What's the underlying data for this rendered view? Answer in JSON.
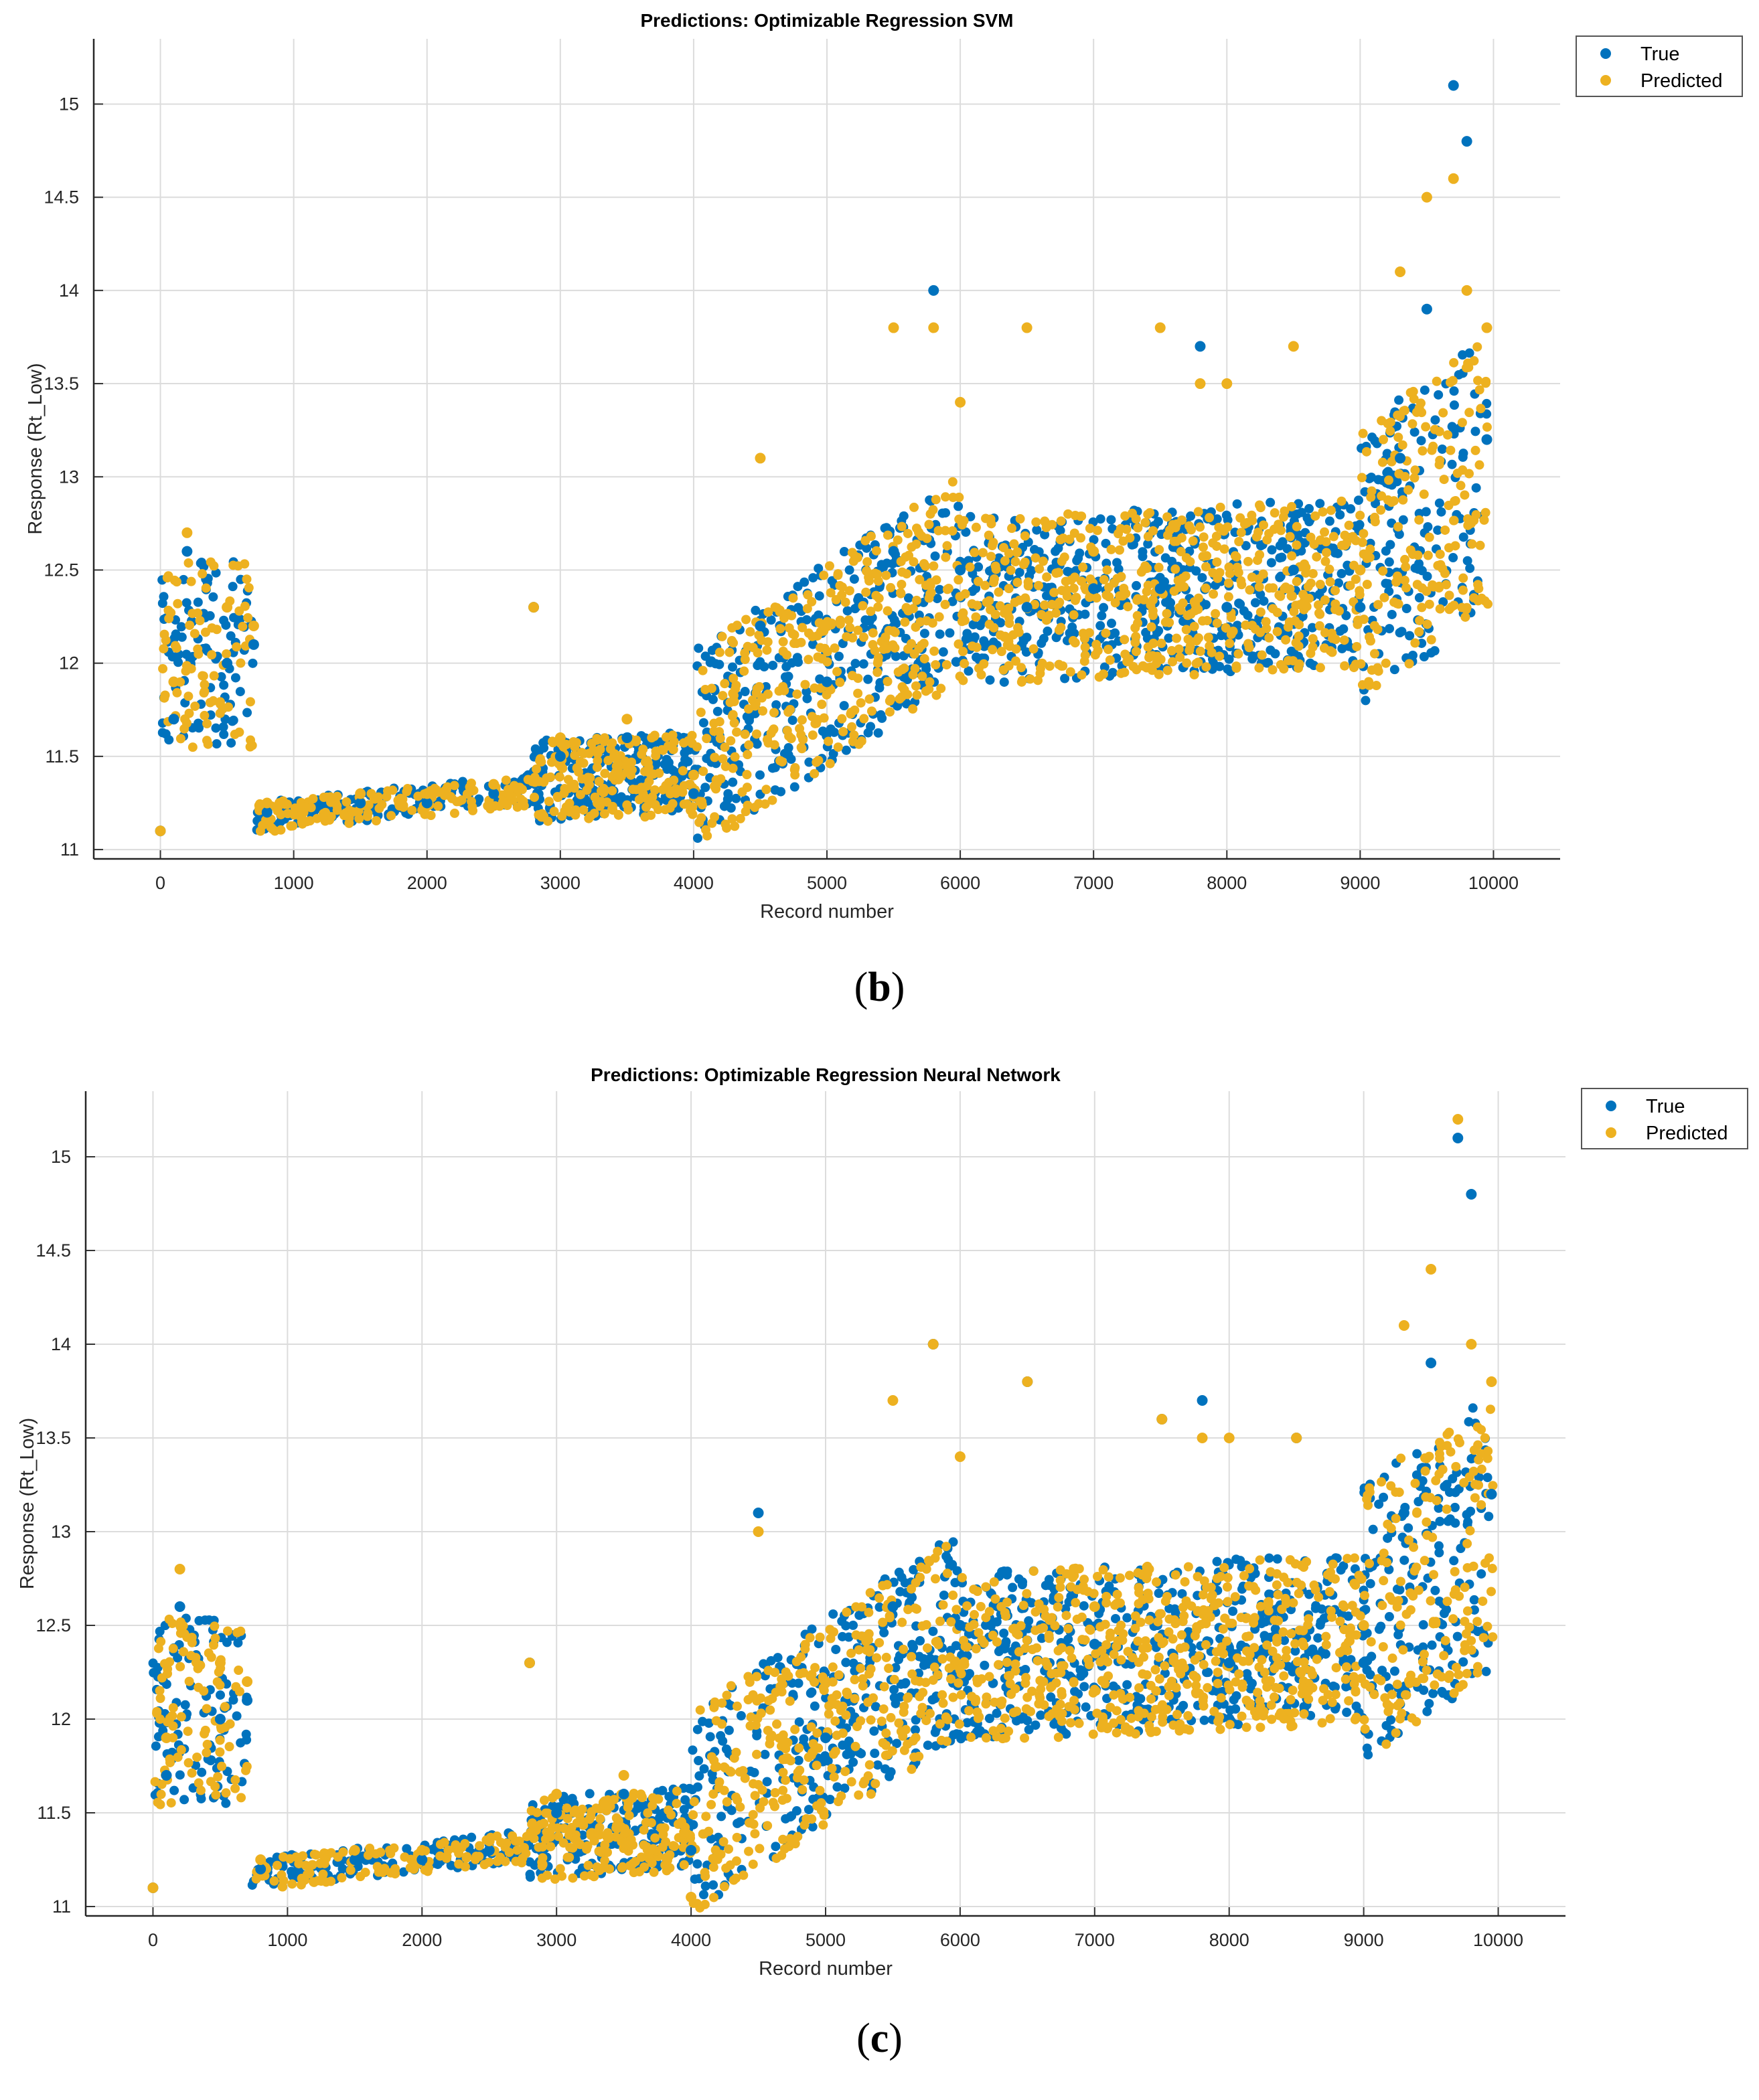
{
  "chart_data": [
    {
      "type": "scatter",
      "title": "Predictions: Optimizable Regression SVM",
      "xlabel": "Record number",
      "ylabel": "Response (Rt_Low)",
      "xlim": [
        -500,
        10500
      ],
      "ylim": [
        10.95,
        15.35
      ],
      "xticks": [
        0,
        1000,
        2000,
        3000,
        4000,
        5000,
        6000,
        7000,
        8000,
        9000,
        10000
      ],
      "yticks": [
        11,
        11.5,
        12,
        12.5,
        13,
        13.5,
        14,
        14.5,
        15
      ],
      "xtick_labels": [
        "0",
        "1000",
        "2000",
        "3000",
        "4000",
        "5000",
        "6000",
        "7000",
        "8000",
        "9000",
        "10000"
      ],
      "ytick_labels": [
        "11",
        "11.5",
        "12",
        "12.5",
        "13",
        "13.5",
        "14",
        "14.5",
        "15"
      ],
      "grid": true,
      "legend_position": "top-right",
      "series": [
        {
          "name": "True",
          "color": "#0072BD",
          "x": [
            0,
            100,
            200,
            500,
            700,
            800,
            1500,
            2000,
            2500,
            2800,
            3000,
            3500,
            4000,
            4500,
            5000,
            5500,
            5800,
            6000,
            6500,
            7000,
            7500,
            7800,
            8000,
            8500,
            9000,
            9300,
            9500,
            9700,
            9800,
            9950
          ],
          "y": [
            11.1,
            11.7,
            12.6,
            12.0,
            12.1,
            11.2,
            11.25,
            11.25,
            11.3,
            12.3,
            11.5,
            11.6,
            11.3,
            12.2,
            11.9,
            12.6,
            14.0,
            12.5,
            12.3,
            12.4,
            12.4,
            13.7,
            12.3,
            12.5,
            12.3,
            13.1,
            13.9,
            15.1,
            14.8,
            13.2
          ]
        },
        {
          "name": "Predicted",
          "color": "#EDB120",
          "x": [
            0,
            100,
            200,
            500,
            700,
            800,
            1500,
            2000,
            2500,
            2800,
            3000,
            3500,
            4000,
            4500,
            5000,
            5500,
            5800,
            6000,
            6500,
            7000,
            7500,
            7800,
            8000,
            8500,
            9000,
            9300,
            9500,
            9700,
            9800,
            9950
          ],
          "y": [
            11.1,
            11.9,
            12.7,
            12.3,
            12.2,
            11.25,
            11.3,
            11.3,
            11.35,
            12.3,
            11.6,
            11.7,
            11.4,
            13.1,
            12.2,
            13.8,
            13.8,
            13.4,
            13.8,
            12.6,
            13.8,
            13.5,
            13.5,
            13.7,
            12.5,
            14.1,
            14.5,
            14.6,
            14.0,
            13.8
          ]
        }
      ]
    },
    {
      "type": "scatter",
      "title": "Predictions: Optimizable Regression Neural Network",
      "xlabel": "Record number",
      "ylabel": "Response (Rt_Low)",
      "xlim": [
        -500,
        10500
      ],
      "ylim": [
        10.95,
        15.35
      ],
      "xticks": [
        0,
        1000,
        2000,
        3000,
        4000,
        5000,
        6000,
        7000,
        8000,
        9000,
        10000
      ],
      "yticks": [
        11,
        11.5,
        12,
        12.5,
        13,
        13.5,
        14,
        14.5,
        15
      ],
      "xtick_labels": [
        "0",
        "1000",
        "2000",
        "3000",
        "4000",
        "5000",
        "6000",
        "7000",
        "8000",
        "9000",
        "10000"
      ],
      "ytick_labels": [
        "11",
        "11.5",
        "12",
        "12.5",
        "13",
        "13.5",
        "14",
        "14.5",
        "15"
      ],
      "grid": true,
      "legend_position": "top-right",
      "series": [
        {
          "name": "True",
          "color": "#0072BD",
          "x": [
            0,
            100,
            200,
            500,
            700,
            800,
            1500,
            2000,
            2500,
            2800,
            3000,
            3500,
            4000,
            4500,
            5000,
            5500,
            5800,
            6000,
            6500,
            7000,
            7500,
            7800,
            8000,
            8500,
            9000,
            9300,
            9500,
            9700,
            9800,
            9950
          ],
          "y": [
            11.1,
            11.7,
            12.6,
            12.0,
            12.1,
            11.2,
            11.25,
            11.25,
            11.3,
            12.3,
            11.5,
            11.6,
            11.3,
            13.1,
            11.9,
            12.6,
            14.0,
            12.5,
            13.8,
            12.4,
            13.6,
            13.7,
            12.3,
            13.5,
            12.3,
            13.1,
            13.9,
            15.1,
            14.8,
            13.2
          ]
        },
        {
          "name": "Predicted",
          "color": "#EDB120",
          "x": [
            0,
            100,
            200,
            500,
            700,
            800,
            1500,
            2000,
            2500,
            2800,
            3000,
            3500,
            4000,
            4500,
            5000,
            5500,
            5800,
            6000,
            6500,
            7000,
            7500,
            7800,
            8000,
            8500,
            9000,
            9300,
            9500,
            9700,
            9800,
            9950
          ],
          "y": [
            11.1,
            11.9,
            12.8,
            12.3,
            12.2,
            11.25,
            11.3,
            11.3,
            11.35,
            12.3,
            11.6,
            11.7,
            11.05,
            13.0,
            12.2,
            13.7,
            14.0,
            13.4,
            13.8,
            12.6,
            13.6,
            13.5,
            13.5,
            13.5,
            12.5,
            14.1,
            14.4,
            15.2,
            14.0,
            13.8
          ]
        }
      ]
    }
  ],
  "captions": [
    "(b)",
    "(c)"
  ],
  "caption_letters": [
    "b",
    "c"
  ]
}
